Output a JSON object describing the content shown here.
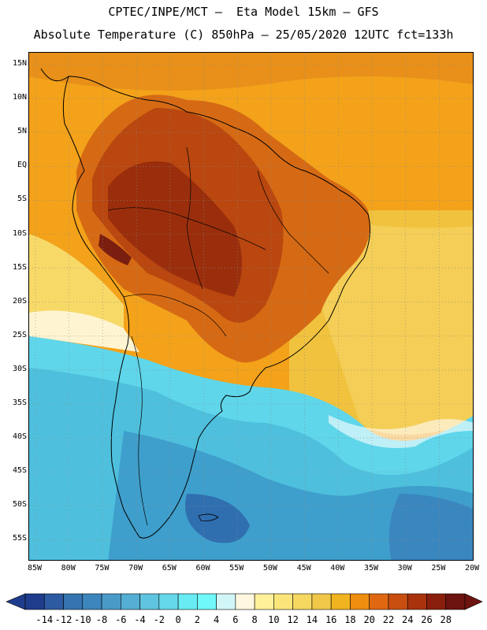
{
  "header": {
    "line1": "CPTEC/INPE/MCT –  Eta Model 15km – GFS",
    "line2": "Absolute Temperature (C) 850hPa – 25/05/2020 12UTC fct=133h"
  },
  "axes": {
    "lat_labels": [
      "15N",
      "10N",
      "5N",
      "EQ",
      "5S",
      "10S",
      "15S",
      "20S",
      "25S",
      "30S",
      "35S",
      "40S",
      "45S",
      "50S",
      "55S"
    ],
    "lon_labels": [
      "85W",
      "80W",
      "75W",
      "70W",
      "65W",
      "60W",
      "55W",
      "50W",
      "45W",
      "40W",
      "35W",
      "30W",
      "25W",
      "20W"
    ]
  },
  "colorbar": {
    "unit": "C",
    "labels": [
      "-14",
      "-12",
      "-10",
      "-8",
      "-6",
      "-4",
      "-2",
      "0",
      "2",
      "4",
      "6",
      "8",
      "10",
      "12",
      "14",
      "16",
      "18",
      "20",
      "22",
      "24",
      "26",
      "28"
    ],
    "colors": [
      "#1f3c8c",
      "#2d5aa0",
      "#3574b0",
      "#3d86bd",
      "#4a9ac8",
      "#55aed4",
      "#5fc4df",
      "#66d8ec",
      "#68ebf3",
      "#70f8fa",
      "#d2f6f8",
      "#fff7e0",
      "#fff19a",
      "#fbe57a",
      "#f6d860",
      "#f1c74a",
      "#f0b420",
      "#f08e10",
      "#e06812",
      "#c84f10",
      "#a8330c",
      "#8a1e0c",
      "#6d1410"
    ]
  }
}
